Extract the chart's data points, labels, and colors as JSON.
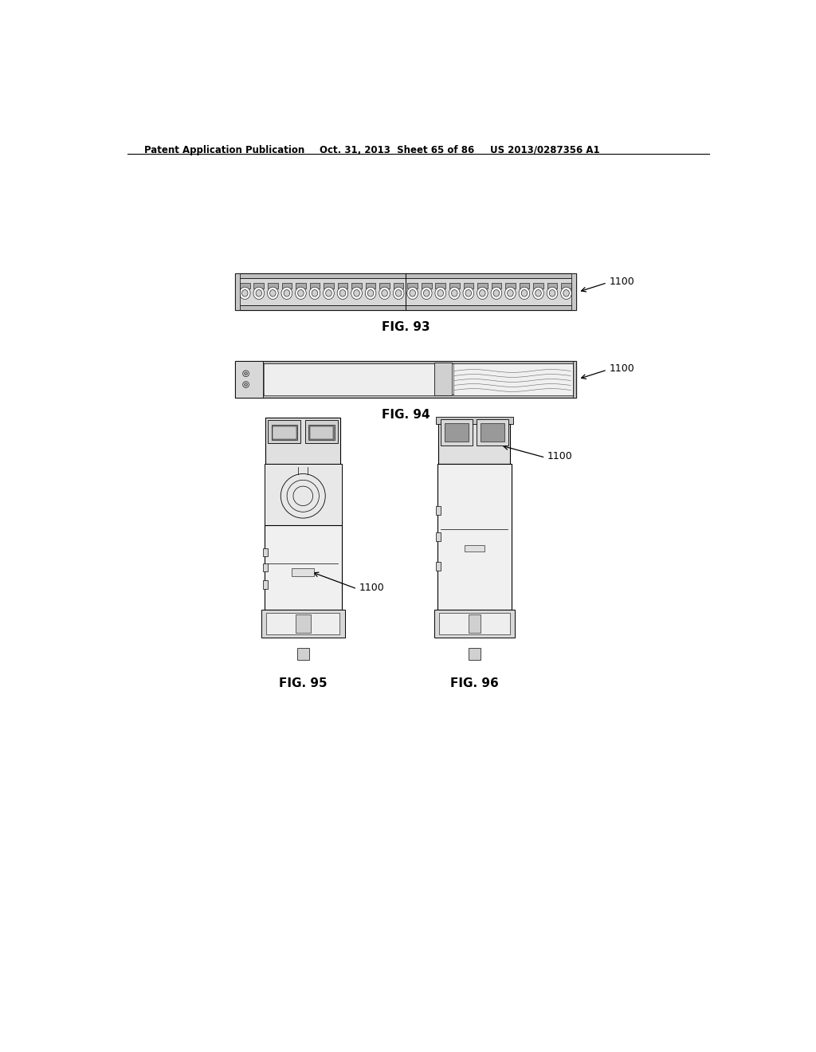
{
  "background_color": "#ffffff",
  "header_left": "Patent Application Publication",
  "header_mid": "Oct. 31, 2013  Sheet 65 of 86",
  "header_right": "US 2013/0287356 A1",
  "fig93_label": "FIG. 93",
  "fig94_label": "FIG. 94",
  "fig95_label": "FIG. 95",
  "fig96_label": "FIG. 96",
  "ref_number": "1100",
  "line_color": "#000000",
  "fill_white": "#ffffff",
  "fill_light": "#f0f0f0",
  "fill_med": "#d8d8d8",
  "fill_dark": "#b0b0b0"
}
